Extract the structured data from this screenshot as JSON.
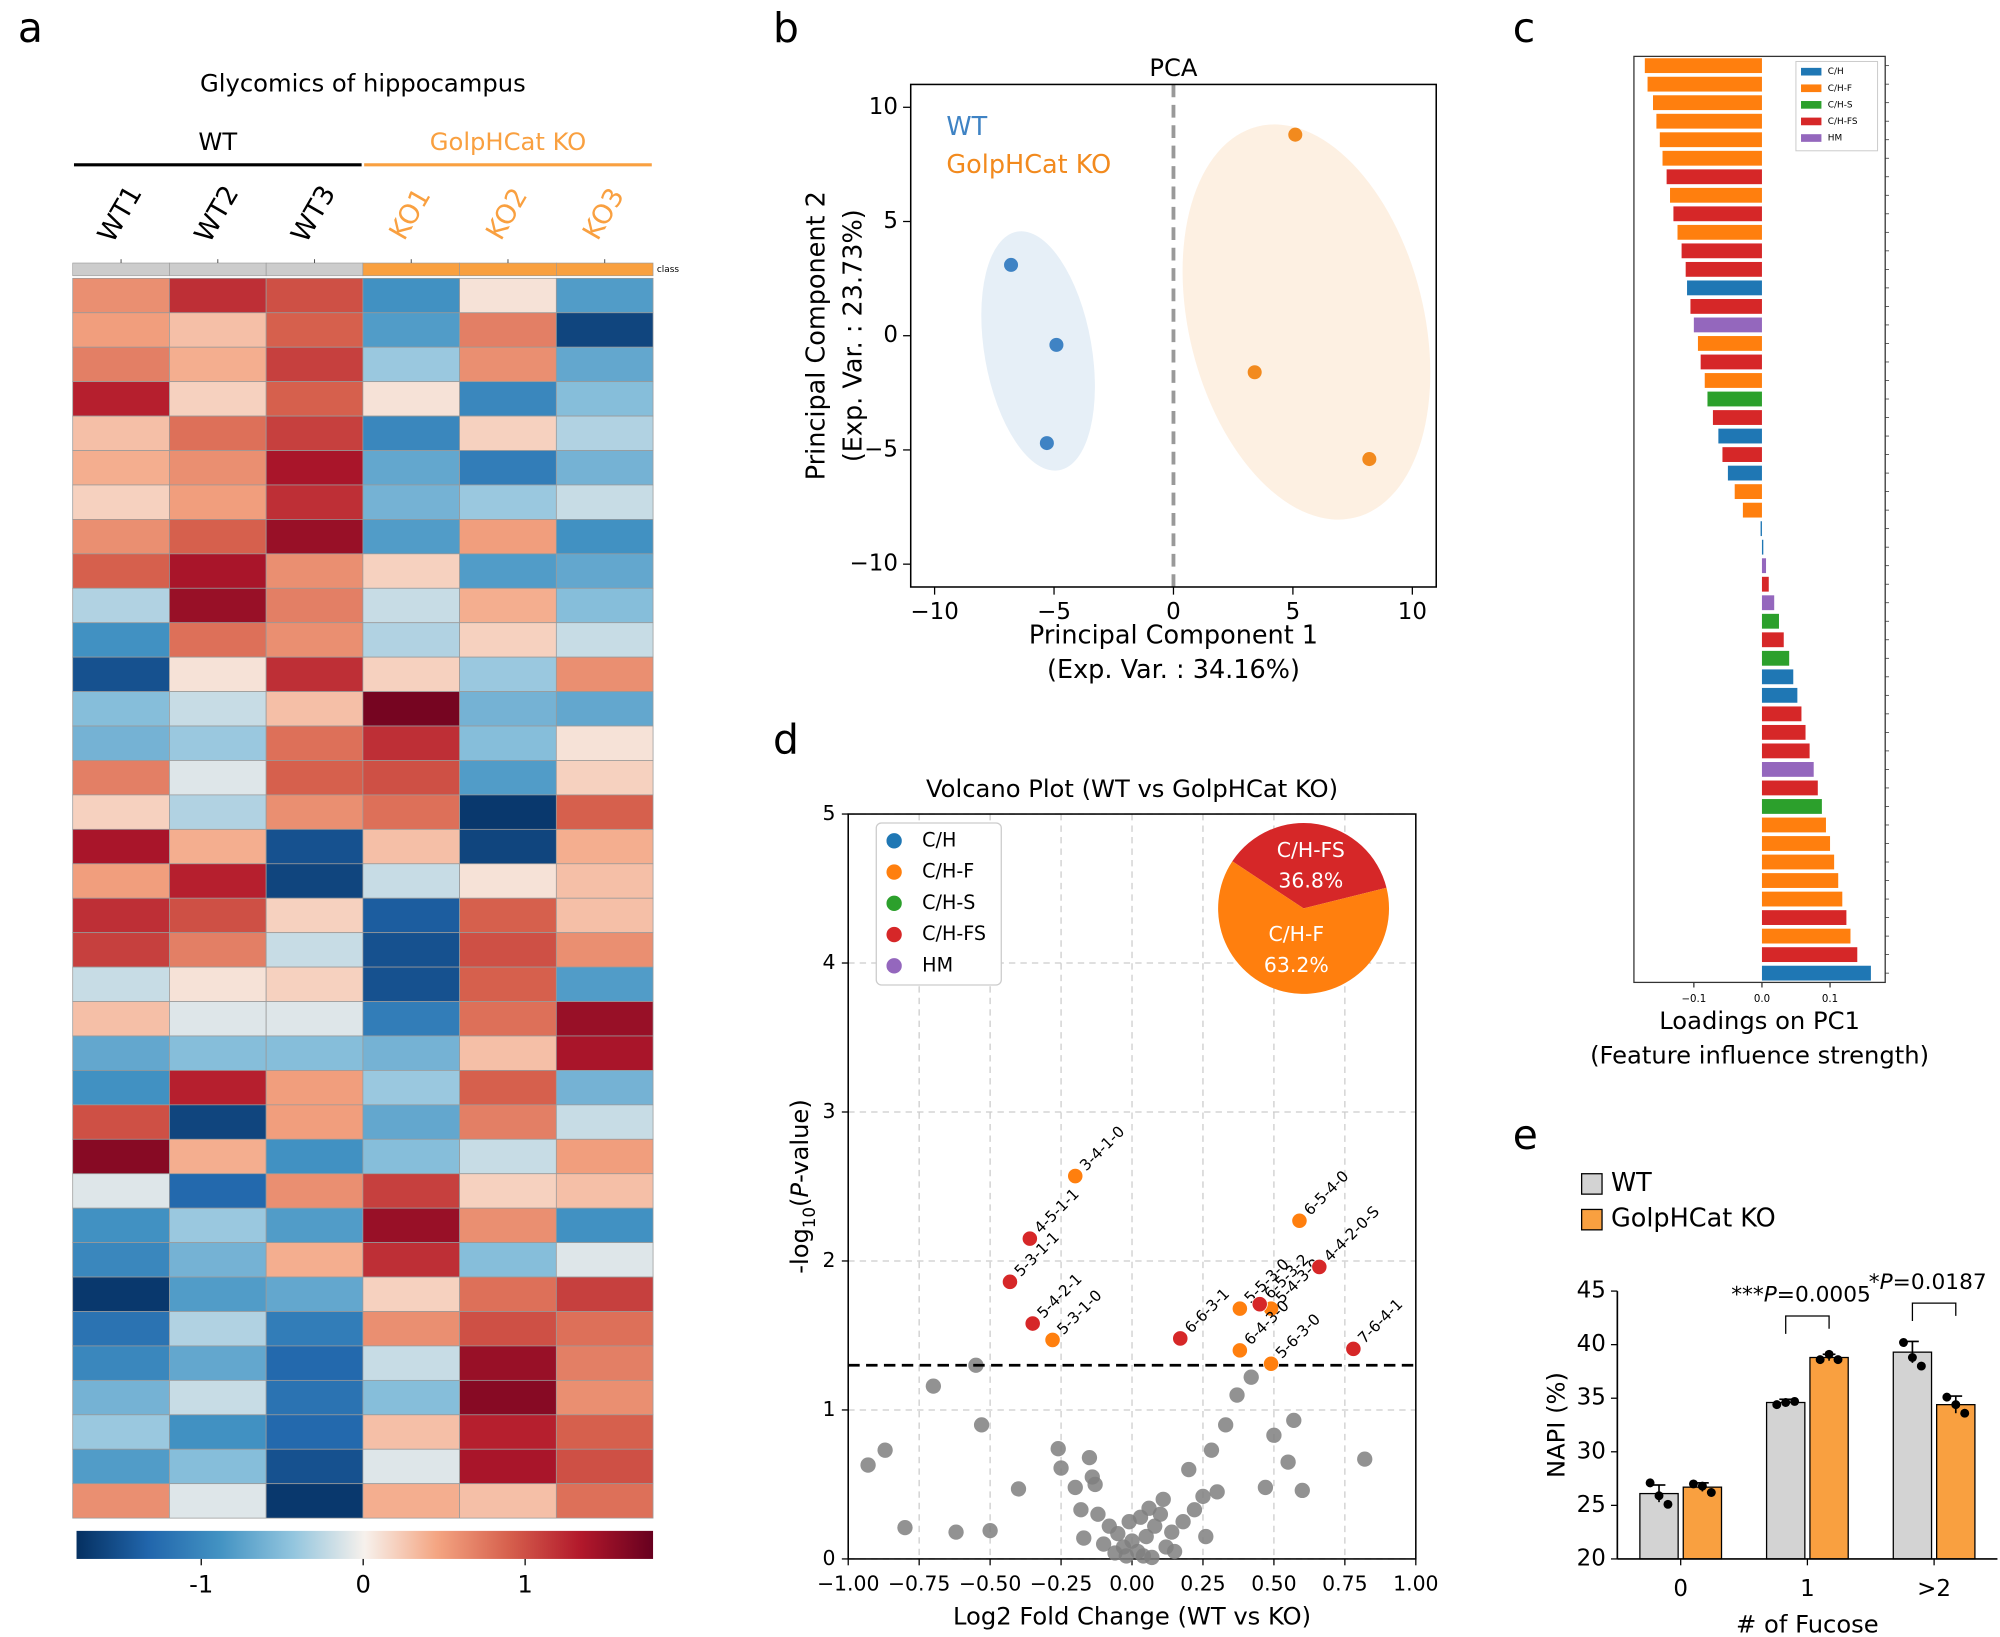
{
  "chart_data": [
    {
      "type": "heatmap",
      "panel": "a",
      "title": "Glycomics of hippocampus",
      "groups": [
        {
          "name": "WT",
          "color": "#000000"
        },
        {
          "name": "GolpHCat KO",
          "color": "#f9a040"
        }
      ],
      "columns": [
        "WT1",
        "WT2",
        "WT3",
        "KO1",
        "KO2",
        "KO3"
      ],
      "column_group": [
        0,
        0,
        0,
        1,
        1,
        1
      ],
      "class_label": "class",
      "class_colors": [
        "#cccccc",
        "#f9a040"
      ],
      "values": [
        [
          0.6,
          1.2,
          1.0,
          -0.9,
          0.1,
          -0.8
        ],
        [
          0.5,
          0.3,
          0.9,
          -0.8,
          0.7,
          -1.6
        ],
        [
          0.7,
          0.4,
          1.1,
          -0.4,
          0.6,
          -0.7
        ],
        [
          1.3,
          0.2,
          0.9,
          0.1,
          -1.0,
          -0.5
        ],
        [
          0.3,
          0.8,
          1.1,
          -1.0,
          0.2,
          -0.3
        ],
        [
          0.4,
          0.6,
          1.4,
          -0.7,
          -1.1,
          -0.6
        ],
        [
          0.2,
          0.5,
          1.2,
          -0.6,
          -0.4,
          -0.2
        ],
        [
          0.6,
          0.9,
          1.5,
          -0.8,
          0.5,
          -0.9
        ],
        [
          0.9,
          1.4,
          0.6,
          0.2,
          -0.8,
          -0.7
        ],
        [
          -0.3,
          1.5,
          0.7,
          -0.2,
          0.4,
          -0.5
        ],
        [
          -0.9,
          0.8,
          0.6,
          -0.3,
          0.2,
          -0.2
        ],
        [
          -1.5,
          0.1,
          1.2,
          0.2,
          -0.4,
          0.6
        ],
        [
          -0.5,
          -0.2,
          0.3,
          1.7,
          -0.6,
          -0.7
        ],
        [
          -0.6,
          -0.4,
          0.8,
          1.2,
          -0.5,
          0.1
        ],
        [
          0.7,
          -0.1,
          0.9,
          1.0,
          -0.8,
          0.2
        ],
        [
          0.2,
          -0.3,
          0.6,
          0.8,
          -1.7,
          0.9
        ],
        [
          1.4,
          0.4,
          -1.5,
          0.3,
          -1.6,
          0.4
        ],
        [
          0.5,
          1.3,
          -1.6,
          -0.2,
          0.1,
          0.3
        ],
        [
          1.2,
          1.0,
          0.2,
          -1.4,
          0.9,
          0.3
        ],
        [
          1.1,
          0.7,
          -0.2,
          -1.5,
          1.0,
          0.6
        ],
        [
          -0.2,
          0.1,
          0.2,
          -1.5,
          0.9,
          -0.8
        ],
        [
          0.3,
          -0.1,
          -0.1,
          -1.1,
          0.8,
          1.5
        ],
        [
          -0.7,
          -0.5,
          -0.5,
          -0.6,
          0.3,
          1.4
        ],
        [
          -0.9,
          1.3,
          0.5,
          -0.4,
          0.9,
          -0.6
        ],
        [
          1.0,
          -1.6,
          0.5,
          -0.7,
          0.7,
          -0.2
        ],
        [
          1.6,
          0.4,
          -0.9,
          -0.5,
          -0.2,
          0.5
        ],
        [
          -0.1,
          -1.3,
          0.6,
          1.1,
          0.2,
          0.3
        ],
        [
          -0.9,
          -0.4,
          -0.8,
          1.5,
          0.6,
          -0.9
        ],
        [
          -1.0,
          -0.6,
          0.4,
          1.2,
          -0.5,
          -0.1
        ],
        [
          -1.7,
          -0.8,
          -0.7,
          0.2,
          0.8,
          1.1
        ],
        [
          -1.2,
          -0.3,
          -1.1,
          0.6,
          1.0,
          0.8
        ],
        [
          -1.0,
          -0.7,
          -1.3,
          -0.2,
          1.5,
          0.7
        ],
        [
          -0.6,
          -0.2,
          -1.2,
          -0.5,
          1.6,
          0.6
        ],
        [
          -0.4,
          -0.9,
          -1.3,
          0.3,
          1.3,
          0.9
        ],
        [
          -0.8,
          -0.5,
          -1.5,
          -0.1,
          1.4,
          1.0
        ],
        [
          0.6,
          -0.1,
          -1.7,
          0.4,
          0.3,
          0.8
        ]
      ],
      "colorbar": {
        "lim": [
          -1.77,
          1.79
        ],
        "ticks": [
          -1,
          0,
          1
        ],
        "colors": [
          "#053061",
          "#2166ac",
          "#4393c3",
          "#92c5de",
          "#f7f1ec",
          "#f4a582",
          "#d6604d",
          "#b2182b",
          "#67001f"
        ]
      }
    },
    {
      "type": "scatter",
      "panel": "b",
      "title": "PCA",
      "xlabel": [
        "Principal Component 1",
        "(Exp. Var. : 34.16%)"
      ],
      "ylabel": [
        "Principal Component 2",
        "(Exp. Var. : 23.73%)"
      ],
      "xlim": [
        -11,
        11
      ],
      "ylim": [
        -11,
        11
      ],
      "xticks": [
        {
          "value": -10,
          "label": "−10"
        },
        {
          "value": -5,
          "label": "−5"
        },
        0,
        5,
        10
      ],
      "yticks": [
        {
          "value": -10,
          "label": "−10"
        },
        {
          "value": -5,
          "label": "−5"
        },
        0,
        5,
        10
      ],
      "vline": 0,
      "series": [
        {
          "name": "WT",
          "color": "#3f83c4",
          "x": [
            -6.8,
            -4.9,
            -5.3
          ],
          "values": [
            3.1,
            -0.4,
            -4.7
          ]
        },
        {
          "name": "GolpHCat KO",
          "color": "#f28a1e",
          "x": [
            5.1,
            3.4,
            8.2
          ],
          "values": [
            8.8,
            -1.6,
            -5.4
          ]
        }
      ]
    },
    {
      "type": "barh",
      "panel": "c",
      "xlabel": [
        "Loadings on PC1",
        "(Feature influence strength)"
      ],
      "xlim": [
        -0.188,
        0.181
      ],
      "xticks": [
        {
          "value": -0.1,
          "label": "−0.1"
        },
        {
          "value": 0,
          "label": "0.0"
        },
        {
          "value": 0.1,
          "label": "0.1"
        }
      ],
      "legend": [
        {
          "name": "C/H",
          "color": "#1f77b4"
        },
        {
          "name": "C/H-F",
          "color": "#ff7f0e"
        },
        {
          "name": "C/H-S",
          "color": "#2ca02c"
        },
        {
          "name": "C/H-FS",
          "color": "#d62728"
        },
        {
          "name": "HM",
          "color": "#9467bd"
        }
      ],
      "values": [
        -0.172,
        -0.168,
        -0.16,
        -0.155,
        -0.15,
        -0.146,
        -0.14,
        -0.135,
        -0.13,
        -0.124,
        -0.118,
        -0.112,
        -0.11,
        -0.105,
        -0.1,
        -0.094,
        -0.09,
        -0.084,
        -0.08,
        -0.072,
        -0.064,
        -0.058,
        -0.05,
        -0.04,
        -0.028,
        -0.002,
        0.002,
        0.006,
        0.01,
        0.018,
        0.025,
        0.032,
        0.04,
        0.046,
        0.052,
        0.058,
        0.064,
        0.07,
        0.076,
        0.082,
        0.088,
        0.094,
        0.1,
        0.106,
        0.112,
        0.118,
        0.124,
        0.13,
        0.14,
        0.16
      ],
      "group": [
        1,
        1,
        1,
        1,
        1,
        1,
        3,
        1,
        3,
        1,
        3,
        3,
        0,
        3,
        4,
        1,
        3,
        1,
        2,
        3,
        0,
        3,
        0,
        1,
        1,
        0,
        0,
        4,
        3,
        4,
        2,
        3,
        2,
        0,
        0,
        3,
        3,
        3,
        4,
        3,
        2,
        1,
        1,
        1,
        1,
        1,
        3,
        1,
        3,
        0
      ]
    },
    {
      "type": "volcano",
      "panel": "d",
      "title": "Volcano Plot (WT vs GolpHCat KO)",
      "xlabel": "Log2 Fold Change (WT vs KO)",
      "ylabel": [
        "-log",
        "10",
        "(",
        "P",
        "-value)"
      ],
      "xlim": [
        -1,
        1
      ],
      "ylim": [
        0,
        5
      ],
      "xticks": [
        {
          "value": -1,
          "label": "−1.00"
        },
        {
          "value": -0.75,
          "label": "−0.75"
        },
        {
          "value": -0.5,
          "label": "−0.50"
        },
        {
          "value": -0.25,
          "label": "−0.25"
        },
        {
          "value": 0,
          "label": "0.00"
        },
        {
          "value": 0.25,
          "label": "0.25"
        },
        {
          "value": 0.5,
          "label": "0.50"
        },
        {
          "value": 0.75,
          "label": "0.75"
        },
        {
          "value": 1,
          "label": "1.00"
        }
      ],
      "yticks": [
        0,
        1,
        2,
        3,
        4,
        5
      ],
      "grid": true,
      "hline": 1.3,
      "background": {
        "color": "#7f7f7f",
        "x": [
          -0.93,
          -0.87,
          -0.8,
          -0.7,
          -0.62,
          -0.55,
          -0.53,
          -0.5,
          -0.4,
          -0.26,
          -0.25,
          -0.2,
          -0.18,
          -0.17,
          -0.15,
          -0.14,
          -0.13,
          -0.12,
          -0.1,
          -0.08,
          -0.06,
          -0.05,
          -0.03,
          -0.02,
          0.0,
          0.02,
          0.03,
          0.05,
          0.06,
          0.07,
          0.08,
          0.1,
          0.11,
          0.12,
          0.14,
          0.15,
          0.18,
          0.2,
          0.22,
          0.25,
          0.28,
          0.3,
          0.33,
          0.37,
          0.42,
          0.47,
          0.5,
          0.55,
          0.57,
          0.6,
          0.26,
          -0.01,
          0.04,
          0.82
        ],
        "values": [
          0.63,
          0.73,
          0.21,
          1.16,
          0.18,
          1.3,
          0.9,
          0.19,
          0.47,
          0.74,
          0.61,
          0.48,
          0.33,
          0.14,
          0.68,
          0.55,
          0.5,
          0.3,
          0.1,
          0.22,
          0.04,
          0.17,
          0.08,
          0.02,
          0.12,
          0.05,
          0.28,
          0.15,
          0.34,
          0.01,
          0.22,
          0.3,
          0.4,
          0.08,
          0.18,
          0.05,
          0.25,
          0.6,
          0.33,
          0.42,
          0.73,
          0.45,
          0.9,
          1.1,
          1.22,
          0.48,
          0.83,
          0.65,
          0.93,
          0.46,
          0.15,
          0.25,
          0.02,
          0.67
        ]
      },
      "series": [
        {
          "name": "C/H",
          "color": "#1f77b4",
          "x": [],
          "values": [],
          "labels": []
        },
        {
          "name": "C/H-F",
          "color": "#ff7f0e",
          "x": [
            -0.2,
            -0.28,
            0.59,
            0.38,
            0.49,
            0.38,
            0.49
          ],
          "values": [
            2.57,
            1.47,
            2.27,
            1.68,
            1.68,
            1.4,
            1.31
          ],
          "labels": [
            "3-4-1-0",
            "5-3-1-0",
            "6-5-4-0",
            "5-5-3-0",
            "5-4-3-0",
            "6-4-3-0",
            "5-6-3-0"
          ]
        },
        {
          "name": "C/H-S",
          "color": "#2ca02c",
          "x": [],
          "values": [],
          "labels": []
        },
        {
          "name": "C/H-FS",
          "color": "#d62728",
          "x": [
            -0.36,
            -0.43,
            -0.35,
            0.17,
            0.45,
            0.66,
            0.78
          ],
          "values": [
            2.15,
            1.86,
            1.58,
            1.48,
            1.71,
            1.96,
            1.41
          ],
          "labels": [
            "4-5-1-1",
            "5-3-1-1",
            "5-4-2-1",
            "6-6-3-1",
            "6-5-3-2",
            "4-4-2-0-S",
            "7-6-4-1"
          ]
        },
        {
          "name": "HM",
          "color": "#9467bd",
          "x": [],
          "values": [],
          "labels": []
        }
      ],
      "pie": {
        "labels": [
          "C/H-FS",
          "C/H-F"
        ],
        "values": [
          36.8,
          63.2
        ],
        "value_labels": [
          "36.8%",
          "63.2%"
        ],
        "colors": [
          "#d62728",
          "#ff7f0e"
        ]
      }
    },
    {
      "type": "bar",
      "panel": "e",
      "ylabel": "NAPI (%)",
      "xlabel": "# of Fucose",
      "categories": [
        "0",
        "1",
        ">2"
      ],
      "ylim": [
        20,
        45
      ],
      "yticks": [
        20,
        25,
        30,
        35,
        40,
        45
      ],
      "series": [
        {
          "name": "WT",
          "color": "#d3d3d3",
          "values": [
            26.1,
            34.6,
            39.3
          ],
          "errors": [
            0.8,
            0.3,
            1.0
          ],
          "points": [
            [
              27.1,
              25.9,
              25.1
            ],
            [
              34.4,
              34.6,
              34.7
            ],
            [
              40.2,
              38.8,
              38.0
            ]
          ]
        },
        {
          "name": "GolpHCat KO",
          "color": "#f9a040",
          "values": [
            26.7,
            38.8,
            34.4
          ],
          "errors": [
            0.4,
            0.3,
            0.8
          ],
          "points": [
            [
              27.0,
              26.8,
              26.2
            ],
            [
              38.6,
              39.1,
              38.6
            ],
            [
              35.1,
              34.4,
              33.6
            ]
          ]
        }
      ],
      "annotations": [
        {
          "category": 1,
          "parts": [
            "***",
            "P",
            "=0.0005"
          ]
        },
        {
          "category": 2,
          "parts": [
            "*",
            "P",
            "=0.0187"
          ]
        }
      ]
    }
  ]
}
